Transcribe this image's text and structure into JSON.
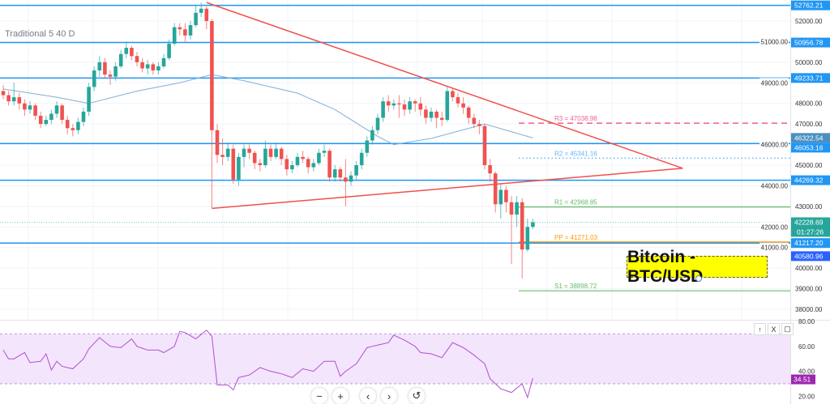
{
  "study_label": "Traditional 5 40 D",
  "note": "Bitcoin - BTC/USD",
  "colors": {
    "up": "#26a69a",
    "down": "#ef5350",
    "level": "#2196f3",
    "ma": "#7fb0d6",
    "trend": "#f0504c",
    "rsi": "#b24fcf",
    "rsi_band": "#f3e5fc"
  },
  "chart_data": [
    {
      "type": "candlestick",
      "title": "",
      "ylim": [
        37600,
        52900
      ],
      "y_ticks": [
        52000,
        51000,
        50000,
        49000,
        48000,
        47000,
        46000,
        45000,
        44000,
        43000,
        42000,
        41000,
        40000,
        39000,
        38000
      ],
      "grid": true,
      "ohlc": [
        [
          48600,
          48900,
          48200,
          48400
        ],
        [
          48400,
          48600,
          47900,
          48100
        ],
        [
          48100,
          49000,
          47900,
          48300
        ],
        [
          48300,
          48500,
          47700,
          48000
        ],
        [
          48000,
          48200,
          47400,
          47700
        ],
        [
          47700,
          48100,
          47500,
          47900
        ],
        [
          47900,
          48000,
          47200,
          47400
        ],
        [
          47400,
          47600,
          46800,
          47000
        ],
        [
          47000,
          47400,
          46900,
          47200
        ],
        [
          47200,
          47700,
          47000,
          47500
        ],
        [
          47500,
          48100,
          47300,
          47900
        ],
        [
          47900,
          48000,
          47000,
          47200
        ],
        [
          47200,
          47400,
          46500,
          46800
        ],
        [
          46800,
          47000,
          46400,
          46700
        ],
        [
          46700,
          47300,
          46500,
          47100
        ],
        [
          47100,
          47800,
          46900,
          47600
        ],
        [
          47600,
          49000,
          47400,
          48800
        ],
        [
          48800,
          49800,
          48600,
          49600
        ],
        [
          49600,
          50300,
          49300,
          50000
        ],
        [
          50000,
          50200,
          49200,
          49400
        ],
        [
          49400,
          49600,
          48900,
          49300
        ],
        [
          49300,
          50000,
          49100,
          49800
        ],
        [
          49800,
          50600,
          49700,
          50400
        ],
        [
          50400,
          51000,
          50200,
          50700
        ],
        [
          50700,
          50800,
          50100,
          50300
        ],
        [
          50300,
          50500,
          49800,
          50000
        ],
        [
          50000,
          50200,
          49500,
          49700
        ],
        [
          49700,
          50100,
          49400,
          49900
        ],
        [
          49900,
          50000,
          49400,
          49600
        ],
        [
          49600,
          50000,
          49400,
          49800
        ],
        [
          49800,
          50400,
          49700,
          50200
        ],
        [
          50200,
          51100,
          50100,
          50900
        ],
        [
          50900,
          51900,
          50800,
          51700
        ],
        [
          51700,
          51900,
          51300,
          51600
        ],
        [
          51600,
          51900,
          51000,
          51300
        ],
        [
          51300,
          52000,
          51100,
          51800
        ],
        [
          51800,
          52800,
          51700,
          52400
        ],
        [
          52400,
          52900,
          52200,
          52600
        ],
        [
          52600,
          52700,
          51600,
          52000
        ],
        [
          52000,
          52100,
          42900,
          46700
        ],
        [
          46700,
          47000,
          45100,
          45500
        ],
        [
          45500,
          46300,
          45000,
          45400
        ],
        [
          45400,
          46100,
          45200,
          45800
        ],
        [
          45800,
          46000,
          44100,
          44300
        ],
        [
          44300,
          45600,
          44000,
          45400
        ],
        [
          45400,
          46000,
          44900,
          45800
        ],
        [
          45800,
          46000,
          45300,
          45600
        ],
        [
          45600,
          45700,
          44800,
          45100
        ],
        [
          45100,
          45300,
          44700,
          45000
        ],
        [
          45000,
          46200,
          44900,
          45800
        ],
        [
          45800,
          46000,
          45200,
          45400
        ],
        [
          45400,
          46100,
          45300,
          45800
        ],
        [
          45800,
          45900,
          45000,
          45300
        ],
        [
          45300,
          45500,
          44500,
          44800
        ],
        [
          44800,
          45200,
          44600,
          45000
        ],
        [
          45000,
          45600,
          44900,
          45400
        ],
        [
          45400,
          45700,
          45100,
          45300
        ],
        [
          45300,
          45400,
          44600,
          44900
        ],
        [
          44900,
          45300,
          44700,
          45100
        ],
        [
          45100,
          45800,
          45000,
          45600
        ],
        [
          45600,
          46000,
          45400,
          45700
        ],
        [
          45700,
          45800,
          44200,
          44400
        ],
        [
          44400,
          45000,
          44200,
          44800
        ],
        [
          44800,
          44900,
          44200,
          44400
        ],
        [
          44400,
          45300,
          43000,
          44200
        ],
        [
          44200,
          44700,
          44000,
          44500
        ],
        [
          44500,
          45200,
          44300,
          45000
        ],
        [
          45000,
          45800,
          44800,
          45600
        ],
        [
          45600,
          46400,
          45400,
          46200
        ],
        [
          46200,
          46900,
          46000,
          46700
        ],
        [
          46700,
          47500,
          46500,
          47300
        ],
        [
          47300,
          48300,
          47100,
          48100
        ],
        [
          48100,
          48400,
          47600,
          47900
        ],
        [
          47900,
          48200,
          47700,
          48000
        ],
        [
          48000,
          48400,
          47300,
          47950
        ],
        [
          47950,
          48200,
          47400,
          47700
        ],
        [
          47700,
          48300,
          47500,
          48100
        ],
        [
          48100,
          48200,
          47600,
          48000
        ],
        [
          48000,
          48300,
          47400,
          47700
        ],
        [
          47700,
          47900,
          47000,
          47300
        ],
        [
          47300,
          47800,
          47100,
          47600
        ],
        [
          47600,
          47700,
          46800,
          47300
        ],
        [
          47300,
          47600,
          46900,
          47200
        ],
        [
          47200,
          48800,
          47100,
          48600
        ],
        [
          48600,
          48700,
          48100,
          48300
        ],
        [
          48300,
          48500,
          47800,
          48000
        ],
        [
          48000,
          48300,
          47500,
          47800
        ],
        [
          47800,
          47900,
          47000,
          47300
        ],
        [
          47300,
          47500,
          46800,
          47000
        ],
        [
          47000,
          47200,
          46500,
          46900
        ],
        [
          46900,
          47000,
          44800,
          45000
        ],
        [
          45000,
          45300,
          44200,
          44600
        ],
        [
          44600,
          44700,
          42700,
          43100
        ],
        [
          43100,
          44100,
          42400,
          43800
        ],
        [
          43800,
          44000,
          42700,
          43200
        ],
        [
          43200,
          43500,
          40200,
          42600
        ],
        [
          42600,
          43500,
          42000,
          43200
        ],
        [
          43200,
          43400,
          39500,
          40900
        ],
        [
          40900,
          42400,
          40800,
          42000
        ],
        [
          42000,
          42400,
          41900,
          42228.69
        ]
      ],
      "moving_average": [
        [
          0,
          48700
        ],
        [
          10,
          48300
        ],
        [
          16,
          48000
        ],
        [
          25,
          48600
        ],
        [
          33,
          49000
        ],
        [
          39,
          49400
        ],
        [
          45,
          49100
        ],
        [
          55,
          48500
        ],
        [
          62,
          47700
        ],
        [
          70,
          46400
        ],
        [
          73,
          46000
        ],
        [
          80,
          46300
        ],
        [
          90,
          47000
        ],
        [
          99,
          46322.54
        ]
      ],
      "horizontal_levels": [
        52762.21,
        50956.78,
        49233.71,
        46053.16,
        44269.32,
        41217.2
      ],
      "pivots": [
        {
          "label": "R3 = 47038.98",
          "value": 47038.98,
          "color": "#f06292",
          "style": "dashed"
        },
        {
          "label": "R2 = 45341.16",
          "value": 45341.16,
          "color": "#64b5f6",
          "style": "dotted"
        },
        {
          "label": "R1 = 42968.85",
          "value": 42968.85,
          "color": "#66bb6a",
          "style": "solid"
        },
        {
          "label": "PP = 41271.03",
          "value": 41271.03,
          "color": "#ff9800",
          "style": "solid"
        },
        {
          "label": "S1 = 38898.72",
          "value": 38898.72,
          "color": "#66bb6a",
          "style": "solid"
        }
      ],
      "trendlines": [
        {
          "from": [
            38,
            52900
          ],
          "to": [
            127,
            44850
          ]
        },
        {
          "from": [
            39,
            42900
          ],
          "to": [
            127,
            44850
          ]
        }
      ],
      "axis_labels": [
        {
          "text": "52762.21",
          "value": 52762.21,
          "color": "#2196f3"
        },
        {
          "text": "50956.78",
          "value": 50956.78,
          "color": "#2196f3"
        },
        {
          "text": "49233.71",
          "value": 49233.71,
          "color": "#2196f3"
        },
        {
          "text": "46322.54",
          "value": 46322.54,
          "color": "#4a8fbf"
        },
        {
          "text": "46053.16",
          "value": 46053.16,
          "color": "#2196f3"
        },
        {
          "text": "44269.32",
          "value": 44269.32,
          "color": "#2196f3"
        },
        {
          "text": "42228.69",
          "value": 42228.69,
          "color": "#26a69a",
          "sub": "01:27:26"
        },
        {
          "text": "41217.20",
          "value": 41217.2,
          "color": "#2196f3"
        },
        {
          "text": "40580.96",
          "value": 40580.96,
          "color": "#2962ff"
        }
      ]
    },
    {
      "type": "line",
      "title": "",
      "ylim": [
        15,
        82
      ],
      "y_ticks": [
        80,
        60,
        40,
        20
      ],
      "band": [
        30,
        70
      ],
      "last_label": "34.51",
      "values": [
        57,
        50,
        50,
        52.5,
        55,
        47,
        47.5,
        48,
        54,
        41,
        48,
        44,
        43,
        42,
        46,
        50,
        58,
        62.5,
        67,
        63.5,
        60,
        59.5,
        59,
        62.5,
        66,
        60,
        58.5,
        57,
        57,
        57,
        55,
        57.5,
        60,
        72,
        71,
        68.5,
        66,
        69.5,
        73,
        68,
        29,
        29,
        29,
        25,
        35,
        36,
        37,
        40,
        43,
        41.5,
        40,
        39,
        38,
        36.5,
        35,
        38.5,
        42,
        41,
        40,
        44,
        48,
        48,
        48,
        36,
        40,
        43,
        46,
        52.5,
        59,
        60,
        61,
        62,
        63,
        69,
        67,
        65,
        62.5,
        60,
        55,
        54.5,
        54,
        52.5,
        51,
        57,
        63,
        61,
        59,
        56,
        53,
        49.5,
        46,
        34,
        30,
        26,
        24.5,
        23,
        26.5,
        30,
        19,
        34.51
      ]
    }
  ],
  "nav_buttons": {
    "zoom_out": "−",
    "zoom_in": "+",
    "scroll_left": "‹",
    "scroll_right": "›",
    "reset": "↺"
  },
  "pane_buttons": {
    "move_up": "↑",
    "close": "X",
    "maximize": "▢"
  }
}
